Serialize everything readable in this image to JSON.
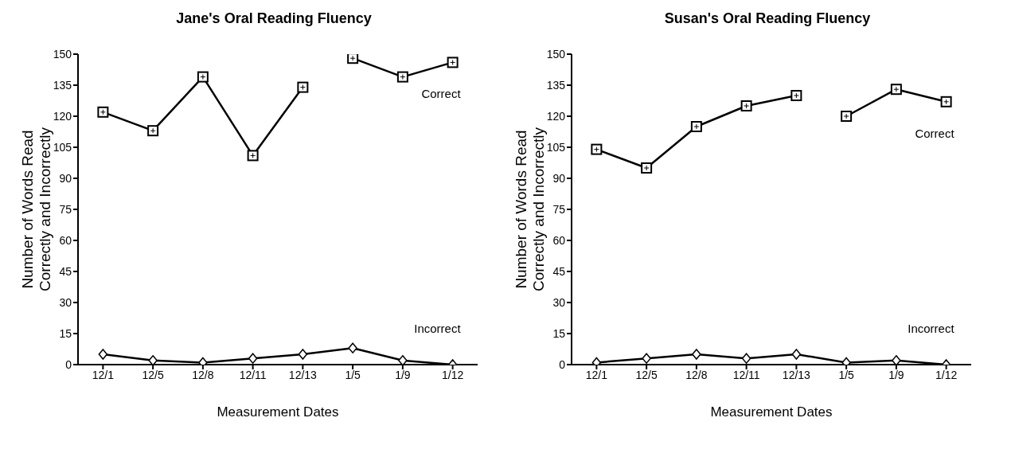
{
  "chart_data": [
    {
      "type": "line",
      "title": "Jane's Oral Reading Fluency",
      "xlabel": "Measurement Dates",
      "ylabel": "Number of Words Read\nCorrectly and Incorrectly",
      "categories": [
        "12/1",
        "12/5",
        "12/8",
        "12/11",
        "12/13",
        "1/5",
        "1/9",
        "1/12"
      ],
      "ylim": [
        0,
        150
      ],
      "yticks": [
        0,
        15,
        30,
        45,
        60,
        75,
        90,
        105,
        120,
        135,
        150
      ],
      "grid": false,
      "legend": false,
      "line_style": "solid",
      "series": [
        {
          "color": "#000000",
          "marker": "square",
          "values": [
            122,
            113,
            139,
            101,
            134,
            null,
            null,
            null
          ]
        },
        {
          "name": "Correct",
          "color": "#000000",
          "marker": "square",
          "values": [
            null,
            null,
            null,
            null,
            null,
            148,
            139,
            146
          ]
        },
        {
          "name": "Incorrect",
          "color": "#000000",
          "marker": "diamond",
          "values": [
            5,
            2,
            1,
            3,
            5,
            8,
            2,
            0
          ]
        }
      ]
    },
    {
      "type": "line",
      "title": "Susan's Oral Reading Fluency",
      "xlabel": "Measurement Dates",
      "ylabel": "Number of Words Read\nCorrectly and Incorrectly",
      "categories": [
        "12/1",
        "12/5",
        "12/8",
        "12/11",
        "12/13",
        "1/5",
        "1/9",
        "1/12"
      ],
      "ylim": [
        0,
        150
      ],
      "yticks": [
        0,
        15,
        30,
        45,
        60,
        75,
        90,
        105,
        120,
        135,
        150
      ],
      "grid": false,
      "legend": false,
      "line_style": "solid",
      "series": [
        {
          "color": "#000000",
          "marker": "square",
          "values": [
            104,
            95,
            115,
            125,
            130,
            null,
            null,
            null
          ]
        },
        {
          "name": "Correct",
          "color": "#000000",
          "marker": "square",
          "values": [
            null,
            null,
            null,
            null,
            null,
            120,
            133,
            127
          ]
        },
        {
          "name": "Incorrect",
          "color": "#000000",
          "marker": "diamond",
          "values": [
            1,
            3,
            5,
            3,
            5,
            1,
            2,
            0
          ]
        }
      ]
    }
  ]
}
